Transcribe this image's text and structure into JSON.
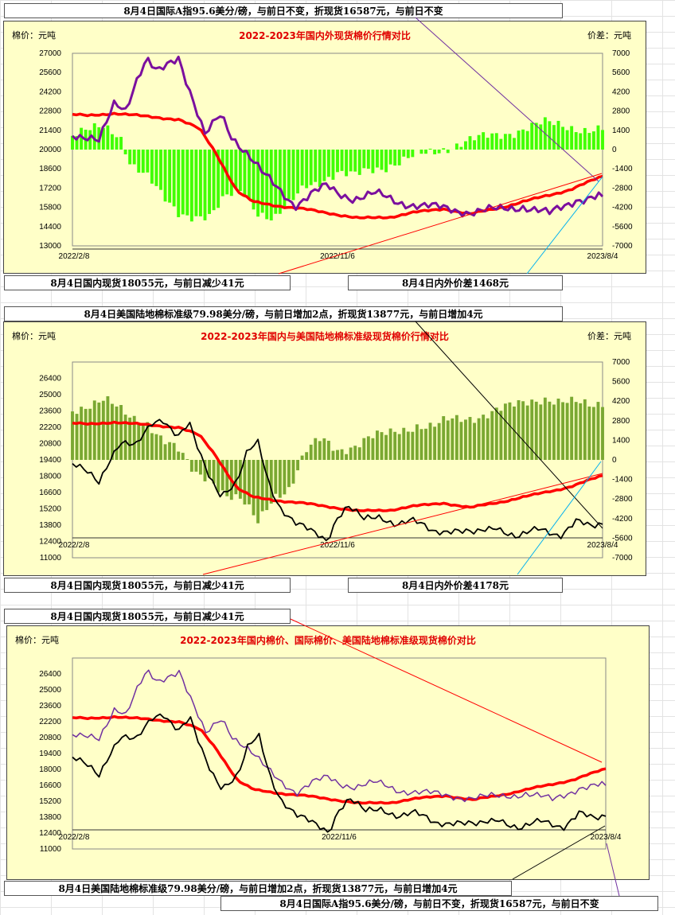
{
  "notes": {
    "n1": "8月4日国际A指95.6美分/磅，与前日不变，折现货16587元，与前日不变",
    "n2": "8月4日国内现货18055元，与前日减少41元",
    "n3": "8月4日内外价差1468元",
    "n4": "8月4日美国陆地棉标准级79.98美分/磅，与前日增加2点，折现货13877元，与前日增加4元",
    "n5": "8月4日国内现货18055元，与前日减少41元",
    "n6": "8月4日内外价差4178元",
    "n7": "8月4日国内现货18055元，与前日减少41元",
    "n8": "8月4日美国陆地棉标准级79.98美分/磅，与前日增加2点，折现货13877元，与前日增加4元",
    "n9": "8月4日国际A指95.6美分/磅，与前日不变，折现货16587元，与前日不变"
  },
  "colors": {
    "domestic": "#ff0000",
    "international": "#7b0f9e",
    "us": "#000000",
    "spread_a": "#40ff00",
    "spread_b": "#7aa832",
    "international_thin": "#7030a0"
  },
  "chart_data": [
    {
      "id": "chart1",
      "type": "line",
      "title": "2022-2023年国内外现货棉价行情对比",
      "ylabel_left": "棉价：元吨",
      "ylabel_right": "价差：元吨",
      "ylim": [
        13000,
        27000
      ],
      "yticks": [
        13000,
        14400,
        15800,
        17200,
        18600,
        20000,
        21400,
        22800,
        24200,
        25600,
        27000
      ],
      "y2lim": [
        -7000,
        7000
      ],
      "y2ticks": [
        -7000,
        -5600,
        -4200,
        -2800,
        -1400,
        0,
        1400,
        2800,
        4200,
        5600,
        7000
      ],
      "x_ticks": [
        "2022/2/8",
        "2022/11/6",
        "2023/8/4"
      ],
      "x_positions": [
        0,
        0.5,
        1
      ],
      "series": [
        {
          "name": "国内现货",
          "key": "domestic",
          "width": 3.5,
          "x": [
            0,
            0.03,
            0.08,
            0.14,
            0.2,
            0.24,
            0.27,
            0.31,
            0.34,
            0.39,
            0.44,
            0.49,
            0.54,
            0.6,
            0.64,
            0.7,
            0.75,
            0.82,
            0.88,
            0.94,
            1
          ],
          "values": [
            22550,
            22450,
            22650,
            22400,
            22200,
            21500,
            19800,
            17000,
            16200,
            15900,
            15650,
            15350,
            15000,
            15100,
            15400,
            15700,
            15300,
            15900,
            16500,
            17100,
            18055
          ]
        },
        {
          "name": "国际A指",
          "key": "international",
          "width": 3,
          "x": [
            0,
            0.02,
            0.05,
            0.08,
            0.1,
            0.12,
            0.14,
            0.16,
            0.18,
            0.2,
            0.22,
            0.25,
            0.28,
            0.3,
            0.33,
            0.36,
            0.39,
            0.42,
            0.45,
            0.48,
            0.5,
            0.53,
            0.57,
            0.61,
            0.65,
            0.7,
            0.75,
            0.8,
            0.85,
            0.9,
            0.95,
            1
          ],
          "values": [
            21200,
            20900,
            20500,
            23500,
            23000,
            25000,
            26500,
            25500,
            26200,
            26800,
            24500,
            21000,
            22500,
            21000,
            19800,
            18200,
            17000,
            16000,
            16800,
            17300,
            16800,
            16500,
            16800,
            16200,
            16000,
            15700,
            15500,
            15600,
            15900,
            15300,
            16400,
            16587
          ]
        },
        {
          "name": "内外价差",
          "key": "spread_a",
          "type": "bar",
          "axis": "y2",
          "x": [
            0,
            0.03,
            0.06,
            0.09,
            0.11,
            0.14,
            0.17,
            0.2,
            0.23,
            0.26,
            0.29,
            0.32,
            0.35,
            0.38,
            0.41,
            0.44,
            0.47,
            0.5,
            0.53,
            0.56,
            0.59,
            0.62,
            0.65,
            0.68,
            0.71,
            0.74,
            0.77,
            0.8,
            0.83,
            0.86,
            0.89,
            0.92,
            0.95,
            0.98,
            1
          ],
          "values": [
            1000,
            1300,
            1700,
            1100,
            -1000,
            -2000,
            -3500,
            -4500,
            -4800,
            -5000,
            -3500,
            -2800,
            -4500,
            -5200,
            -4000,
            -2500,
            -2200,
            -1800,
            -2000,
            -1400,
            -1200,
            -900,
            -500,
            -200,
            200,
            600,
            800,
            1000,
            1300,
            1700,
            1900,
            1700,
            1600,
            1500,
            1468
          ]
        }
      ]
    },
    {
      "id": "chart2",
      "type": "line",
      "title": "2022-2023年国内与美国陆地棉标准级现货棉价行情对比",
      "ylabel_left": "棉价：元吨",
      "ylabel_right": "价差：元吨",
      "ylim": [
        11000,
        27800
      ],
      "yticks": [
        11000,
        12400,
        13800,
        15200,
        16600,
        18000,
        19400,
        20800,
        22200,
        23600,
        25000,
        26400
      ],
      "y2lim": [
        -7000,
        7000
      ],
      "y2ticks": [
        -7000,
        -5600,
        -4200,
        -2800,
        -1400,
        0,
        1400,
        2800,
        4200,
        5600,
        7000
      ],
      "x_ticks": [
        "2022/2/8",
        "2022/11/6",
        "2023/8/4"
      ],
      "x_positions": [
        0,
        0.5,
        1
      ],
      "series": [
        {
          "name": "国内现货",
          "key": "domestic",
          "width": 3.5,
          "x": [
            0,
            0.03,
            0.08,
            0.14,
            0.2,
            0.24,
            0.27,
            0.31,
            0.34,
            0.39,
            0.44,
            0.49,
            0.54,
            0.6,
            0.64,
            0.7,
            0.75,
            0.82,
            0.88,
            0.94,
            1
          ],
          "values": [
            22550,
            22450,
            22650,
            22400,
            22200,
            21500,
            19800,
            17000,
            16200,
            15900,
            15650,
            15350,
            15000,
            15100,
            15400,
            15700,
            15300,
            15900,
            16500,
            17100,
            18055
          ]
        },
        {
          "name": "美国陆地棉",
          "key": "us",
          "width": 1.8,
          "x": [
            0,
            0.03,
            0.05,
            0.07,
            0.09,
            0.12,
            0.15,
            0.17,
            0.2,
            0.22,
            0.24,
            0.26,
            0.28,
            0.31,
            0.33,
            0.35,
            0.37,
            0.39,
            0.42,
            0.45,
            0.48,
            0.5,
            0.52,
            0.55,
            0.58,
            0.61,
            0.64,
            0.68,
            0.72,
            0.76,
            0.8,
            0.84,
            0.88,
            0.92,
            0.95,
            0.98,
            1
          ],
          "values": [
            19000,
            18200,
            17500,
            19500,
            21000,
            20500,
            22500,
            23000,
            21500,
            22500,
            19800,
            17800,
            16500,
            17500,
            20000,
            20800,
            17500,
            15500,
            14000,
            13200,
            12500,
            14600,
            15500,
            14200,
            14500,
            14000,
            14200,
            13200,
            13500,
            13000,
            13700,
            12800,
            13400,
            13000,
            14200,
            13500,
            13877
          ]
        },
        {
          "name": "内外价差",
          "key": "spread_b",
          "type": "bar",
          "axis": "y2",
          "x": [
            0,
            0.03,
            0.06,
            0.09,
            0.11,
            0.14,
            0.17,
            0.2,
            0.23,
            0.26,
            0.29,
            0.32,
            0.35,
            0.38,
            0.41,
            0.44,
            0.47,
            0.5,
            0.53,
            0.56,
            0.59,
            0.62,
            0.65,
            0.68,
            0.71,
            0.74,
            0.77,
            0.8,
            0.83,
            0.86,
            0.89,
            0.92,
            0.95,
            0.98,
            1
          ],
          "values": [
            3600,
            4000,
            4300,
            3500,
            3000,
            2800,
            1500,
            600,
            -1000,
            -1200,
            -2500,
            -3000,
            -4500,
            -2500,
            -2000,
            500,
            1500,
            800,
            1000,
            1500,
            1800,
            2200,
            2500,
            2300,
            2800,
            3000,
            3200,
            3500,
            3800,
            4200,
            4500,
            4100,
            4000,
            3900,
            4178
          ]
        }
      ]
    },
    {
      "id": "chart3",
      "type": "line",
      "title": "2022-2023年国内棉价、国际棉价、美国陆地棉标准级现货棉价对比",
      "ylabel_left": "棉价：元吨",
      "ylim": [
        11000,
        27800
      ],
      "yticks": [
        11000,
        12400,
        13800,
        15200,
        16600,
        18000,
        19400,
        20800,
        22200,
        23600,
        25000,
        26400
      ],
      "x_ticks": [
        "2022/2/8",
        "2022/11/6",
        "2023/8/4"
      ],
      "x_positions": [
        0,
        0.5,
        1
      ],
      "series": [
        {
          "name": "国内现货",
          "key": "domestic",
          "width": 3.5,
          "x": [
            0,
            0.03,
            0.08,
            0.14,
            0.2,
            0.24,
            0.27,
            0.31,
            0.34,
            0.39,
            0.44,
            0.49,
            0.54,
            0.6,
            0.64,
            0.7,
            0.75,
            0.82,
            0.88,
            0.94,
            1
          ],
          "values": [
            22550,
            22450,
            22650,
            22400,
            22200,
            21500,
            19800,
            17000,
            16200,
            15900,
            15650,
            15350,
            15000,
            15100,
            15400,
            15700,
            15300,
            15900,
            16500,
            17100,
            18055
          ]
        },
        {
          "name": "国际A指",
          "key": "international_thin",
          "width": 1.5,
          "x": [
            0,
            0.02,
            0.05,
            0.08,
            0.1,
            0.12,
            0.14,
            0.16,
            0.18,
            0.2,
            0.22,
            0.25,
            0.28,
            0.3,
            0.33,
            0.36,
            0.39,
            0.42,
            0.45,
            0.48,
            0.5,
            0.53,
            0.57,
            0.61,
            0.65,
            0.7,
            0.75,
            0.8,
            0.85,
            0.9,
            0.95,
            1
          ],
          "values": [
            21200,
            20900,
            20500,
            23500,
            23000,
            25000,
            26500,
            25500,
            26200,
            26800,
            24500,
            21000,
            22500,
            21000,
            19800,
            18200,
            17000,
            16000,
            16800,
            17300,
            16800,
            16500,
            16800,
            16200,
            16000,
            15700,
            15500,
            15600,
            15900,
            15300,
            16400,
            16587
          ]
        },
        {
          "name": "美国陆地棉",
          "key": "us",
          "width": 1.8,
          "x": [
            0,
            0.03,
            0.05,
            0.07,
            0.09,
            0.12,
            0.15,
            0.17,
            0.2,
            0.22,
            0.24,
            0.26,
            0.28,
            0.31,
            0.33,
            0.35,
            0.37,
            0.39,
            0.42,
            0.45,
            0.48,
            0.5,
            0.52,
            0.55,
            0.58,
            0.61,
            0.64,
            0.68,
            0.72,
            0.76,
            0.8,
            0.84,
            0.88,
            0.92,
            0.95,
            0.98,
            1
          ],
          "values": [
            19000,
            18200,
            17500,
            19500,
            21000,
            20500,
            22500,
            23000,
            21500,
            22500,
            19800,
            17800,
            16500,
            17500,
            20000,
            20800,
            17500,
            15500,
            14000,
            13200,
            12500,
            14600,
            15500,
            14200,
            14500,
            14000,
            14200,
            13200,
            13500,
            13000,
            13700,
            12800,
            13400,
            13000,
            14200,
            13500,
            13877
          ]
        }
      ]
    }
  ]
}
